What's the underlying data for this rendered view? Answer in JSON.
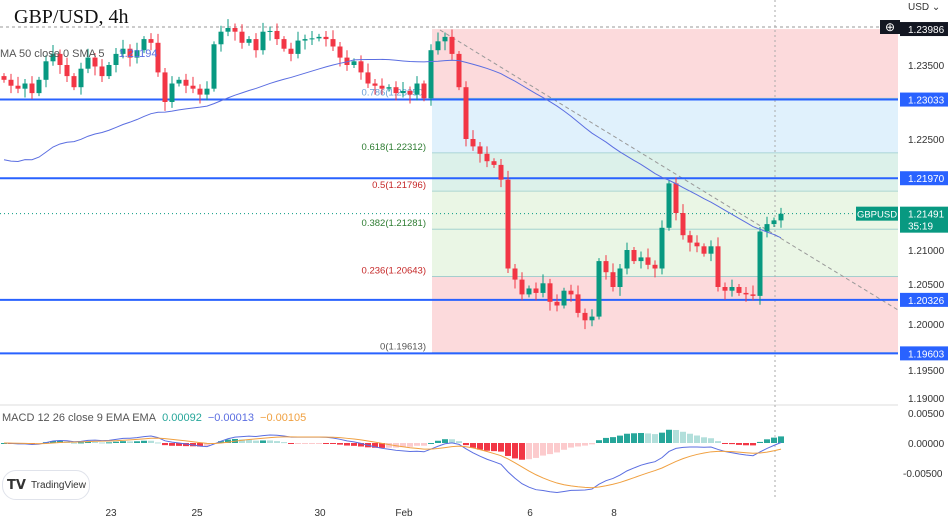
{
  "header": {
    "title": "GBP/USD, 4h",
    "currency": "USD"
  },
  "indicators": {
    "ma_label": "MA 50 close 0 SMA 5",
    "ma_value": "1.21194",
    "macd_label": "MACD 12 26 close 9 EMA EMA",
    "macd_hist": "0.00092",
    "macd_line": "−0.00013",
    "macd_signal": "−0.00105"
  },
  "logo": "TradingView",
  "colors": {
    "up": "#089981",
    "down": "#f23645",
    "hline": "#2962ff",
    "ma": "#5b6ee1",
    "signal": "#f0a040"
  },
  "chart_data": {
    "type": "candlestick",
    "symbol": "GBPUSD",
    "last_price": "1.21491",
    "countdown": "35:19",
    "ylim": [
      1.1875,
      1.2425
    ],
    "price_ticks": [
      "1.23500",
      "1.22500",
      "1.21000",
      "1.20500",
      "1.20000",
      "1.19500",
      "1.19000"
    ],
    "macd_ticks": [
      "0.00500",
      "0.00000",
      "-0.00500"
    ],
    "x_ticks": [
      "23",
      "25",
      "30",
      "Feb",
      "6",
      "8"
    ],
    "hlines": [
      {
        "label": "1.23986",
        "value": 1.23986,
        "style": "dark"
      },
      {
        "label": "1.23033",
        "value": 1.23033
      },
      {
        "label": "1.21970",
        "value": 1.2197
      },
      {
        "label": "1.20326",
        "value": 1.20326
      },
      {
        "label": "1.19603",
        "value": 1.19603
      }
    ],
    "fib": [
      {
        "label": "0.786(1.23050)",
        "value": 1.2305
      },
      {
        "label": "0.618(1.22312)",
        "value": 1.22312
      },
      {
        "label": "0.5(1.21796)",
        "value": 1.21796
      },
      {
        "label": "0.382(1.21281)",
        "value": 1.21281
      },
      {
        "label": "0.236(1.20643)",
        "value": 1.20643
      },
      {
        "label": "0(1.19613)",
        "value": 1.19613
      }
    ],
    "closes": [
      1.233,
      1.2322,
      1.2318,
      1.2325,
      1.2312,
      1.233,
      1.2355,
      1.2365,
      1.235,
      1.2335,
      1.232,
      1.2345,
      1.236,
      1.2348,
      1.2335,
      1.235,
      1.2365,
      1.2372,
      1.236,
      1.237,
      1.2385,
      1.238,
      1.234,
      1.23,
      1.2325,
      1.233,
      1.2322,
      1.2318,
      1.231,
      1.2318,
      1.2378,
      1.2395,
      1.24,
      1.2395,
      1.238,
      1.2385,
      1.237,
      1.2395,
      1.2396,
      1.2385,
      1.2372,
      1.2365,
      1.2383,
      1.2385,
      1.2386,
      1.2388,
      1.2385,
      1.2375,
      1.236,
      1.235,
      1.2355,
      1.234,
      1.2325,
      1.2322,
      1.2318,
      1.232,
      1.2312,
      1.2315,
      1.231,
      1.2325,
      1.2305,
      1.237,
      1.2382,
      1.2388,
      1.2365,
      1.232,
      1.225,
      1.224,
      1.223,
      1.222,
      1.2215,
      1.2195,
      1.2075,
      1.206,
      1.204,
      1.2048,
      1.2042,
      1.2055,
      1.203,
      1.2025,
      1.2045,
      1.204,
      1.2015,
      1.2005,
      1.201,
      1.2085,
      1.207,
      1.205,
      1.2075,
      1.21,
      1.2085,
      1.209,
      1.208,
      1.2075,
      1.213,
      1.219,
      1.215,
      1.212,
      1.211,
      1.2105,
      1.2095,
      1.2105,
      1.205,
      1.2045,
      1.205,
      1.2042,
      1.204,
      1.2038,
      1.2125,
      1.2135,
      1.214,
      1.2149
    ]
  }
}
